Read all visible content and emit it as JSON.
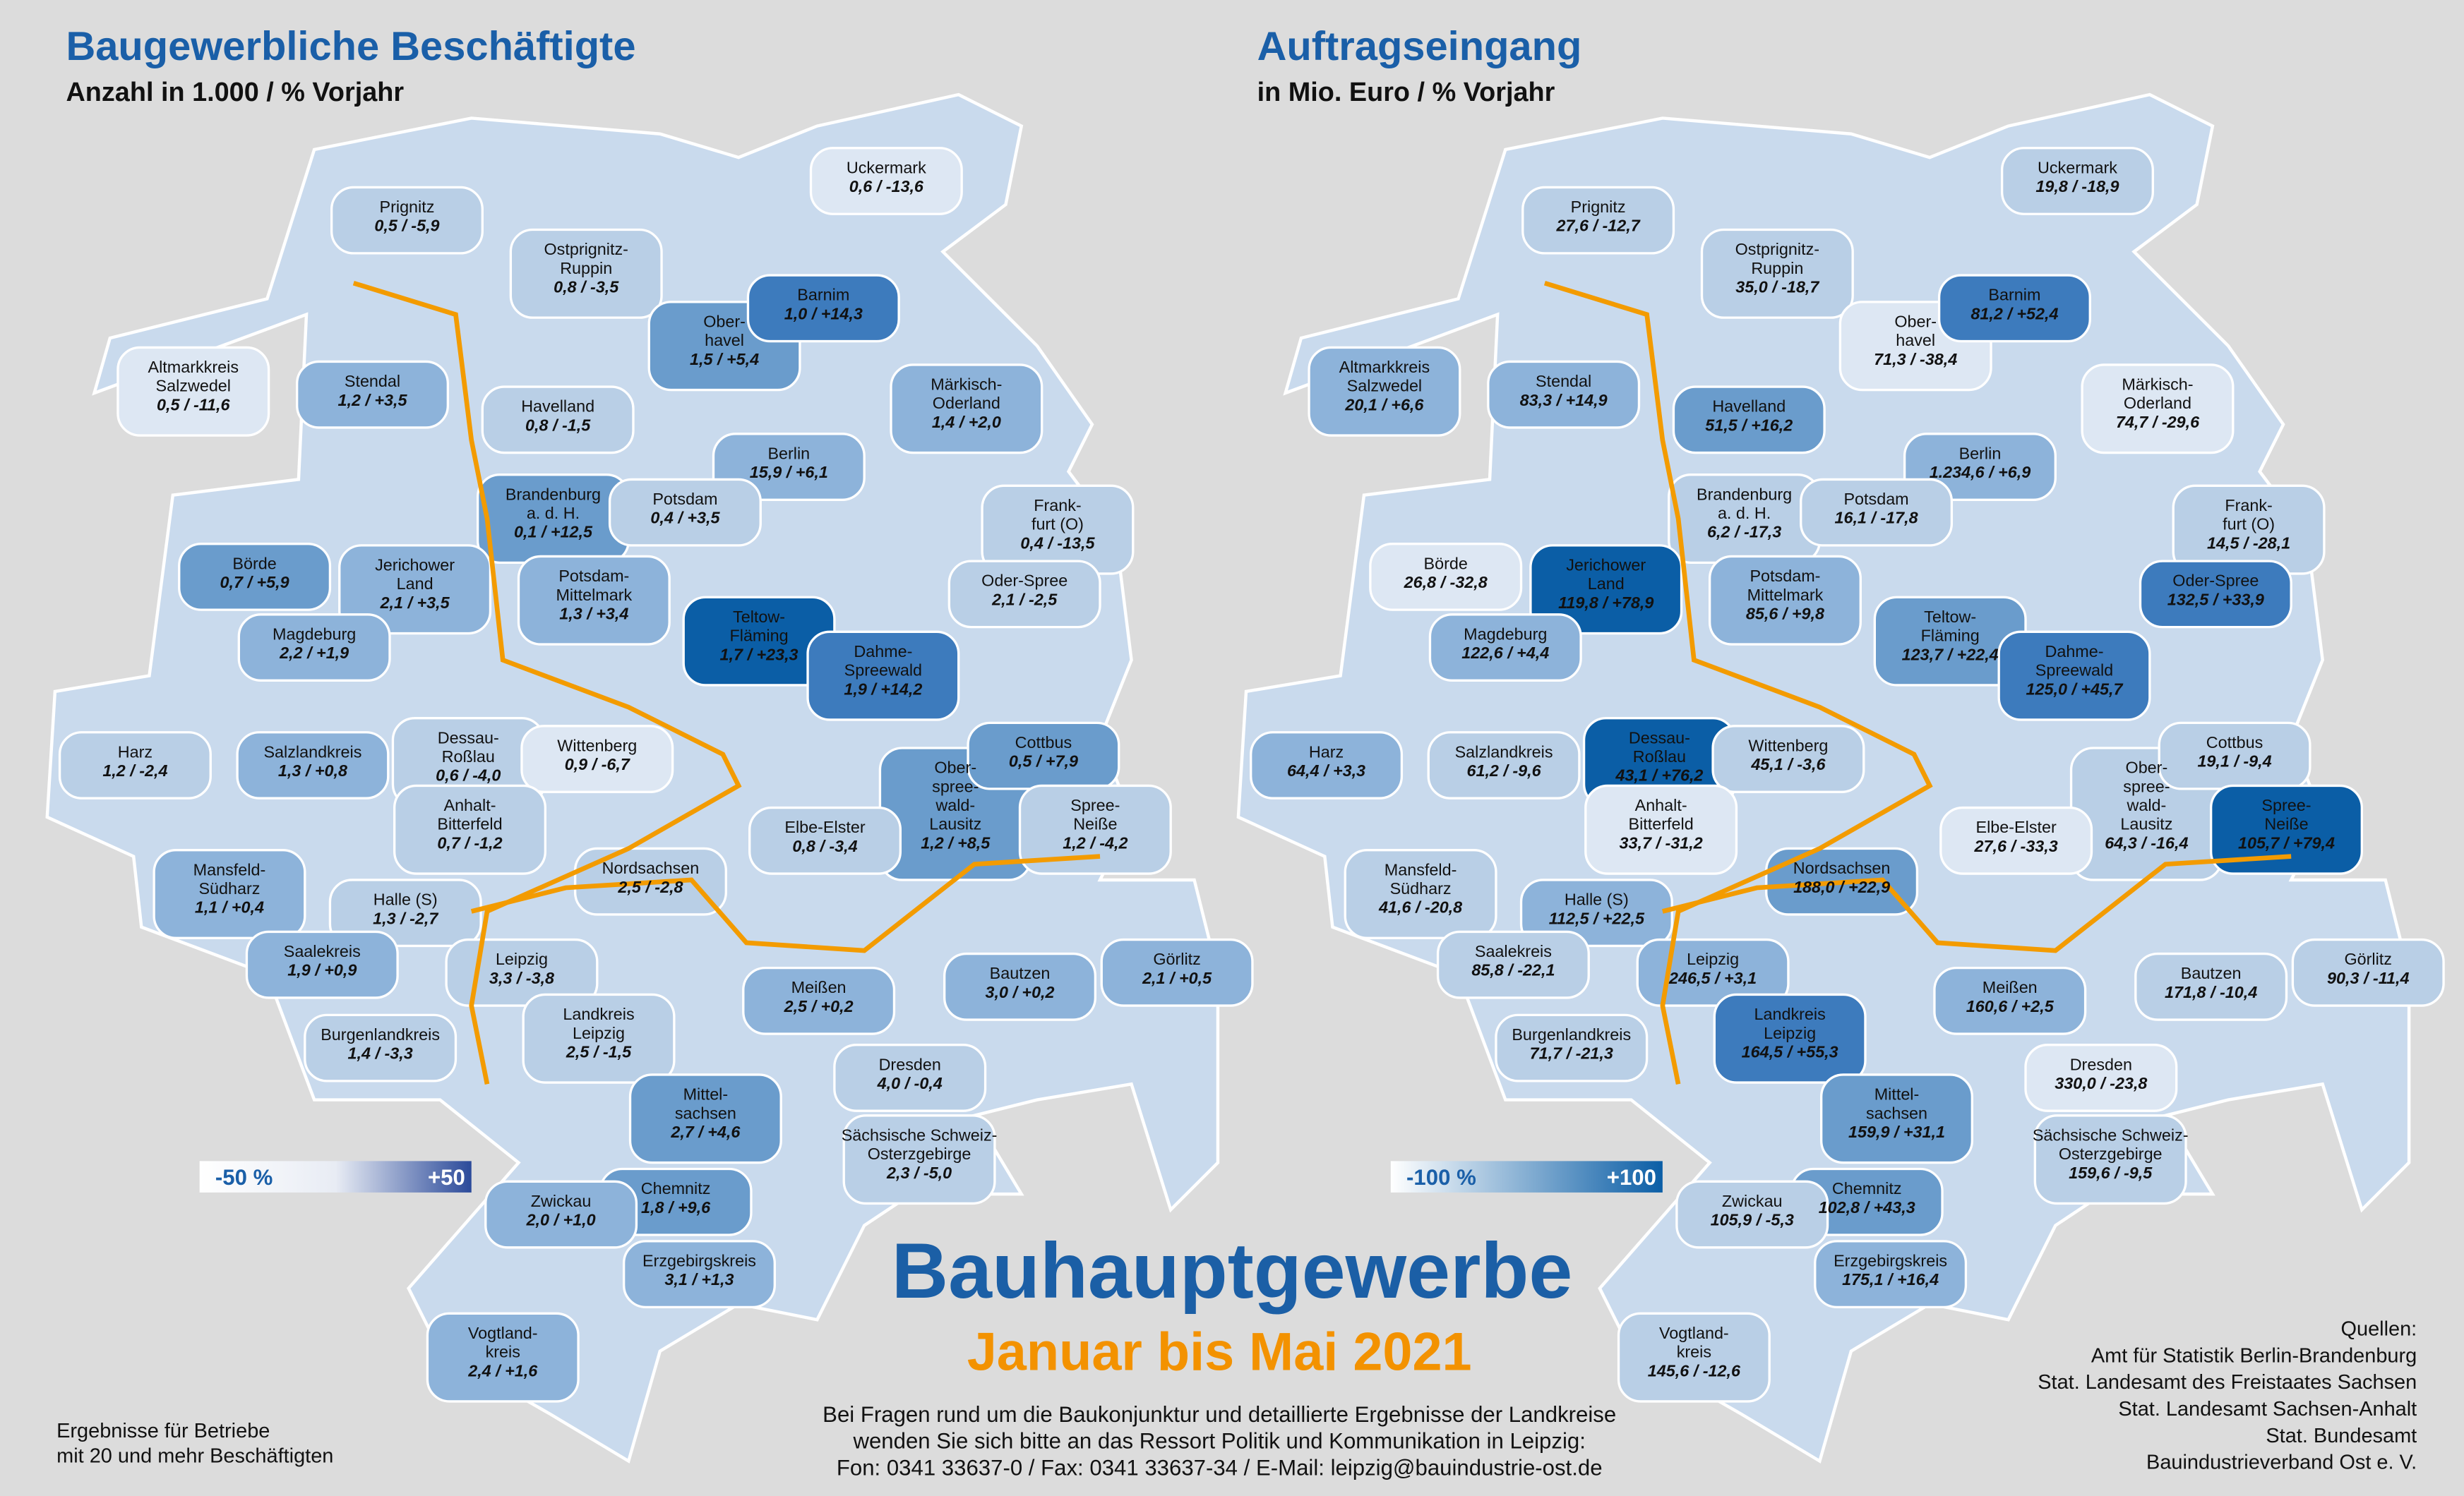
{
  "region_names": [
    [
      "Prignitz"
    ],
    [
      "Uckermark"
    ],
    [
      "Ostprignitz-",
      "Ruppin"
    ],
    [
      "Ober-",
      "havel"
    ],
    [
      "Barnim"
    ],
    [
      "Altmarkkreis",
      "Salzwedel"
    ],
    [
      "Stendal"
    ],
    [
      "Havelland"
    ],
    [
      "Märkisch-",
      "Oderland"
    ],
    [
      "Berlin"
    ],
    [
      "Brandenburg",
      "a. d. H."
    ],
    [
      "Potsdam"
    ],
    [
      "Frank-",
      "furt (O)"
    ],
    [
      "Börde"
    ],
    [
      "Jerichower",
      "Land"
    ],
    [
      "Potsdam-",
      "Mittelmark"
    ],
    [
      "Oder-Spree"
    ],
    [
      "Teltow-",
      "Fläming"
    ],
    [
      "Magdeburg"
    ],
    [
      "Dahme-",
      "Spreewald"
    ],
    [
      "Harz"
    ],
    [
      "Salzlandkreis"
    ],
    [
      "Dessau-",
      "Roßlau"
    ],
    [
      "Wittenberg"
    ],
    [
      "Ober-",
      "spree-",
      "wald-",
      "Lausitz"
    ],
    [
      "Cottbus"
    ],
    [
      "Spree-",
      "Neiße"
    ],
    [
      "Anhalt-",
      "Bitterfeld"
    ],
    [
      "Elbe-Elster"
    ],
    [
      "Mansfeld-",
      "Südharz"
    ],
    [
      "Nordsachsen"
    ],
    [
      "Halle (S)"
    ],
    [
      "Saalekreis"
    ],
    [
      "Leipzig"
    ],
    [
      "Görlitz"
    ],
    [
      "Bautzen"
    ],
    [
      "Meißen"
    ],
    [
      "Landkreis",
      "Leipzig"
    ],
    [
      "Burgenlandkreis"
    ],
    [
      "Dresden"
    ],
    [
      "Mittel-",
      "sachsen"
    ],
    [
      "Sächsische Schweiz-",
      "Osterzgebirge"
    ],
    [
      "Chemnitz"
    ],
    [
      "Zwickau"
    ],
    [
      "Erzgebirgskreis"
    ],
    [
      "Vogtland-",
      "kreis"
    ]
  ],
  "maps": [
    {
      "title": "Baugewerbliche Beschäftigte",
      "subtitle": "Anzahl in 1.000 / % Vorjahr",
      "legend_min": "-50 %",
      "legend_max": "+50",
      "stats": [
        "0,5 / -5,9",
        "0,6 / -13,6",
        "0,8 / -3,5",
        "1,5 / +5,4",
        "1,0 / +14,3",
        "0,5 / -11,6",
        "1,2 / +3,5",
        "0,8 / -1,5",
        "1,4 / +2,0",
        "15,9 / +6,1",
        "0,1 / +12,5",
        "0,4 / +3,5",
        "0,4 / -13,5",
        "0,7 / +5,9",
        "2,1 / +3,5",
        "1,3 / +3,4",
        "2,1 / -2,5",
        "1,7 / +23,3",
        "2,2 / +1,9",
        "1,9 / +14,2",
        "1,2 / -2,4",
        "1,3 / +0,8",
        "0,6 / -4,0",
        "0,9 / -6,7",
        "1,2 / +8,5",
        "0,5 / +7,9",
        "1,2 / -4,2",
        "0,7 / -1,2",
        "0,8 / -3,4",
        "1,1 / +0,4",
        "2,5 / -2,8",
        "1,3 / -2,7",
        "1,9 / +0,9",
        "3,3 / -3,8",
        "2,1 / +0,5",
        "3,0 / +0,2",
        "2,5 / +0,2",
        "2,5 / -1,5",
        "1,4 / -3,3",
        "4,0 / -0,4",
        "2,7 / +4,6",
        "2,3 / -5,0",
        "1,8 / +9,6",
        "2,0 / +1,0",
        "3,1 / +1,3",
        "2,4 / +1,6"
      ],
      "colors": [
        "#b9cfe6",
        "#dde7f3",
        "#b9cfe6",
        "#6a9ccc",
        "#3d7bbd",
        "#dde7f3",
        "#8db3da",
        "#b9cfe6",
        "#8db3da",
        "#8db3da",
        "#6a9ccc",
        "#b9cfe6",
        "#b9cfe6",
        "#6a9ccc",
        "#8db3da",
        "#8db3da",
        "#b9cfe6",
        "#0b5ea6",
        "#8db3da",
        "#3d7bbd",
        "#b9cfe6",
        "#8db3da",
        "#b9cfe6",
        "#dde7f3",
        "#6a9ccc",
        "#6a9ccc",
        "#b9cfe6",
        "#b9cfe6",
        "#b9cfe6",
        "#8db3da",
        "#b9cfe6",
        "#b9cfe6",
        "#8db3da",
        "#b9cfe6",
        "#8db3da",
        "#8db3da",
        "#8db3da",
        "#b9cfe6",
        "#b9cfe6",
        "#b9cfe6",
        "#6a9ccc",
        "#b9cfe6",
        "#6a9ccc",
        "#8db3da",
        "#8db3da",
        "#8db3da"
      ]
    },
    {
      "title": "Auftragseingang",
      "subtitle": "in Mio. Euro / % Vorjahr",
      "legend_min": "-100 %",
      "legend_max": "+100",
      "stats": [
        "27,6 / -12,7",
        "19,8 / -18,9",
        "35,0 / -18,7",
        "71,3 / -38,4",
        "81,2 / +52,4",
        "20,1 / +6,6",
        "83,3 / +14,9",
        "51,5 / +16,2",
        "74,7 / -29,6",
        "1.234,6 / +6,9",
        "6,2 / -17,3",
        "16,1 / -17,8",
        "14,5 / -28,1",
        "26,8 / -32,8",
        "119,8 / +78,9",
        "85,6 / +9,8",
        "132,5 / +33,9",
        "123,7 / +22,4",
        "122,6 / +4,4",
        "125,0 / +45,7",
        "64,4 / +3,3",
        "61,2 / -9,6",
        "43,1 / +76,2",
        "45,1 / -3,6",
        "64,3 / -16,4",
        "19,1 / -9,4",
        "105,7 / +79,4",
        "33,7 / -31,2",
        "27,6 / -33,3",
        "41,6 / -20,8",
        "188,0 / +22,9",
        "112,5 / +22,5",
        "85,8 / -22,1",
        "246,5 / +3,1",
        "90,3 / -11,4",
        "171,8 / -10,4",
        "160,6 / +2,5",
        "164,5 / +55,3",
        "71,7 / -21,3",
        "330,0 / -23,8",
        "159,9 / +31,1",
        "159,6 / -9,5",
        "102,8 / +43,3",
        "105,9 / -5,3",
        "175,1 / +16,4",
        "145,6 / -12,6"
      ],
      "colors": [
        "#b9cfe6",
        "#b9cfe6",
        "#b9cfe6",
        "#dde7f3",
        "#3d7bbd",
        "#8db3da",
        "#8db3da",
        "#6a9ccc",
        "#dde7f3",
        "#8db3da",
        "#b9cfe6",
        "#b9cfe6",
        "#b9cfe6",
        "#dde7f3",
        "#0b5ea6",
        "#8db3da",
        "#3d7bbd",
        "#6a9ccc",
        "#8db3da",
        "#3d7bbd",
        "#8db3da",
        "#b9cfe6",
        "#0b5ea6",
        "#b9cfe6",
        "#b9cfe6",
        "#b9cfe6",
        "#0b5ea6",
        "#dde7f3",
        "#dde7f3",
        "#b9cfe6",
        "#6a9ccc",
        "#8db3da",
        "#b9cfe6",
        "#8db3da",
        "#b9cfe6",
        "#b9cfe6",
        "#8db3da",
        "#3d7bbd",
        "#b9cfe6",
        "#dde7f3",
        "#6a9ccc",
        "#b9cfe6",
        "#6a9ccc",
        "#b9cfe6",
        "#8db3da",
        "#b9cfe6"
      ]
    }
  ],
  "headline": "Bauhauptgewerbe",
  "period": "Januar bis Mai 2021",
  "contact": [
    "Bei Fragen rund um die Baukonjunktur und detaillierte Ergebnisse der Landkreise",
    "wenden Sie sich bitte an das Ressort Politik und Kommunikation in Leipzig:",
    "Fon: 0341 33637-0 / Fax: 0341 33637-34 / E-Mail: leipzig@bauindustrie-ost.de"
  ],
  "footnote": [
    "Ergebnisse für Betriebe",
    "mit 20 und mehr Beschäftigten"
  ],
  "sources": [
    "Quellen:",
    "Amt für Statistik Berlin-Brandenburg",
    "Stat. Landesamt des Freistaates Sachsen",
    "Stat. Landesamt Sachsen-Anhalt",
    "Stat. Bundesamt",
    "Bauindustrieverband Ost e. V."
  ]
}
